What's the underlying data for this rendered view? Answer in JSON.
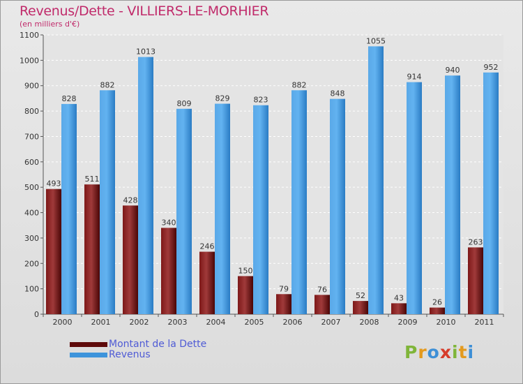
{
  "chart_data": {
    "type": "bar",
    "title": "Revenus/Dette - VILLIERS-LE-MORHIER",
    "subtitle": "(en milliers d'€)",
    "categories": [
      "2000",
      "2001",
      "2002",
      "2003",
      "2004",
      "2005",
      "2006",
      "2007",
      "2008",
      "2009",
      "2010",
      "2011"
    ],
    "series": [
      {
        "name": "Montant de la Dette",
        "color": "#6b0a0a",
        "values": [
          493,
          511,
          428,
          340,
          246,
          150,
          79,
          76,
          52,
          43,
          26,
          263
        ]
      },
      {
        "name": "Revenus",
        "color": "#3d94db",
        "values": [
          828,
          882,
          1013,
          809,
          829,
          823,
          882,
          848,
          1055,
          914,
          940,
          952
        ]
      }
    ],
    "ylim": [
      0,
      1100
    ],
    "yticks": [
      0,
      100,
      200,
      300,
      400,
      500,
      600,
      700,
      800,
      900,
      1000,
      1100
    ],
    "grid": true,
    "legend": "bottom-left"
  },
  "logo": {
    "text": "Proxiti",
    "letters": [
      {
        "ch": "P",
        "color": "#7fb539"
      },
      {
        "ch": "r",
        "color": "#e49a1e"
      },
      {
        "ch": "o",
        "color": "#3d8fd6"
      },
      {
        "ch": "x",
        "color": "#d63c2a"
      },
      {
        "ch": "i",
        "color": "#7fb539"
      },
      {
        "ch": "t",
        "color": "#e49a1e"
      },
      {
        "ch": "i",
        "color": "#3d8fd6"
      }
    ]
  }
}
